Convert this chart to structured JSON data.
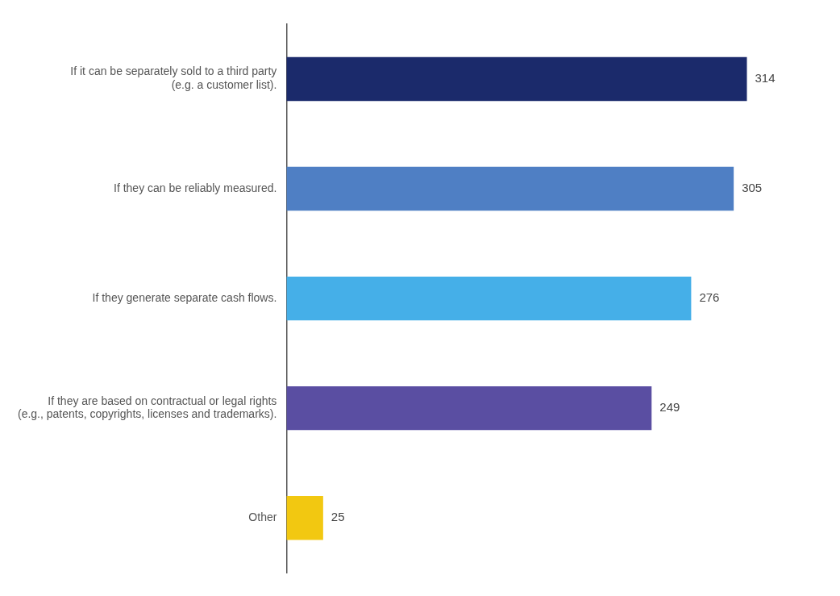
{
  "chart_data": {
    "type": "bar",
    "orientation": "horizontal",
    "categories": [
      "If it can be separately sold to a third party\n(e.g. a customer list).",
      "If they can be reliably measured.",
      "If they generate separate cash flows.",
      "If they are based on contractual or legal rights\n(e.g., patents, copyrights, licenses and trademarks).",
      "Other"
    ],
    "values": [
      314,
      305,
      276,
      249,
      25
    ],
    "colors": [
      "#1b2a6b",
      "#4f7fc4",
      "#45afe8",
      "#5a4ea2",
      "#f2c811"
    ],
    "data_labels": true,
    "legend": false
  }
}
